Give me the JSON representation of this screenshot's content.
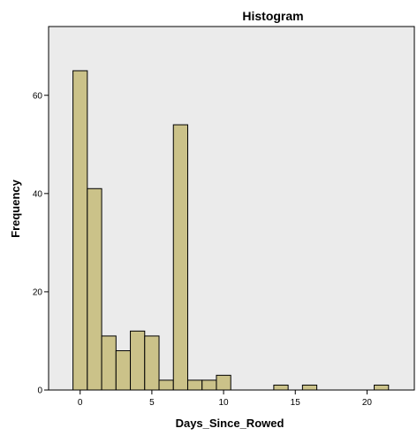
{
  "chart_data": {
    "type": "bar",
    "title": "Histogram",
    "xlabel": "Days_Since_Rowed",
    "ylabel": "Frequency",
    "x_ticks": [
      0,
      5,
      10,
      15,
      20
    ],
    "y_ticks": [
      0,
      20,
      40,
      60
    ],
    "xlim": [
      -2.2,
      23.3
    ],
    "ylim": [
      0,
      74
    ],
    "bin_width": 1,
    "bins": [
      {
        "x": 0,
        "value": 65
      },
      {
        "x": 1,
        "value": 41
      },
      {
        "x": 2,
        "value": 11
      },
      {
        "x": 3,
        "value": 8
      },
      {
        "x": 4,
        "value": 12
      },
      {
        "x": 5,
        "value": 11
      },
      {
        "x": 6,
        "value": 2
      },
      {
        "x": 7,
        "value": 54
      },
      {
        "x": 8,
        "value": 2
      },
      {
        "x": 9,
        "value": 2
      },
      {
        "x": 10,
        "value": 3
      },
      {
        "x": 14,
        "value": 1
      },
      {
        "x": 16,
        "value": 1
      },
      {
        "x": 21,
        "value": 1
      }
    ],
    "grid": false,
    "legend": "none",
    "colors": {
      "bar_fill": "#CBC289",
      "bar_stroke": "#000000",
      "plot_background": "#EBEBEB",
      "plot_border": "#000000"
    }
  }
}
